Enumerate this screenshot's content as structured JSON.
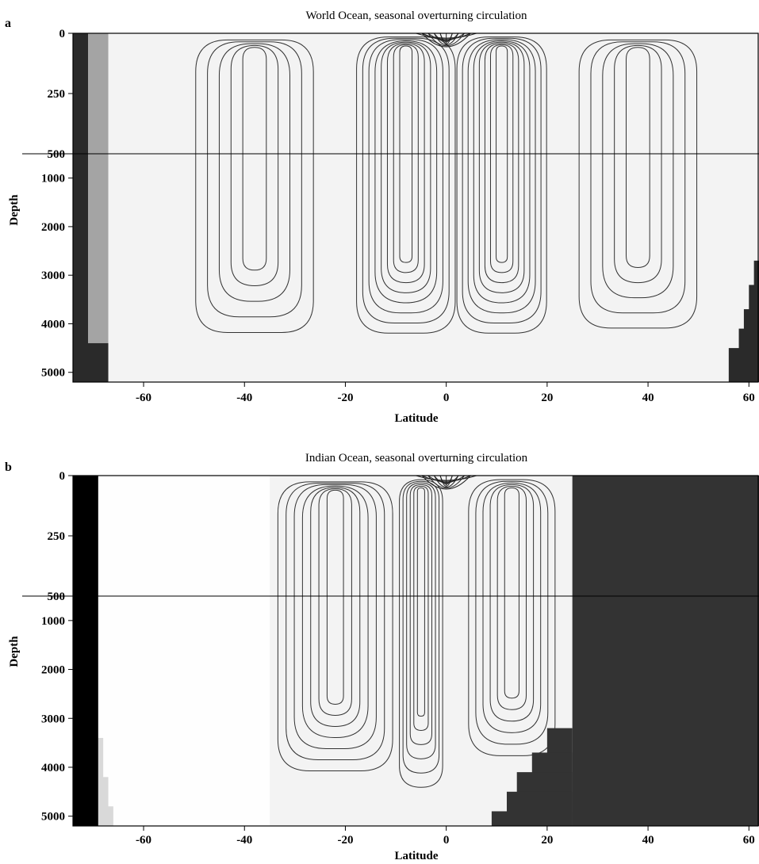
{
  "chart_data": [
    {
      "type": "contour",
      "panel_label": "a",
      "title": "World Ocean, seasonal overturning circulation",
      "xlabel": "Latitude",
      "ylabel": "Depth",
      "xlim": [
        -74,
        62
      ],
      "x_ticks": [
        -60,
        -40,
        -20,
        0,
        20,
        40,
        60
      ],
      "y_ticks_upper": [
        0,
        250,
        500
      ],
      "y_ticks_lower": [
        1000,
        2000,
        3000,
        4000,
        5000
      ],
      "ylim_upper": [
        0,
        500
      ],
      "ylim_lower": [
        500,
        5200
      ],
      "grid": false,
      "legend": "none",
      "land_color": "#2a2a2a",
      "ice_color": "#8a8a8a"
    },
    {
      "type": "contour",
      "panel_label": "b",
      "title": "Indian Ocean, seasonal overturning circulation",
      "xlabel": "Latitude",
      "ylabel": "Depth",
      "xlim": [
        -74,
        62
      ],
      "x_ticks": [
        -60,
        -40,
        -20,
        0,
        20,
        40,
        60
      ],
      "y_ticks_upper": [
        0,
        250,
        500
      ],
      "y_ticks_lower": [
        1000,
        2000,
        3000,
        4000,
        5000
      ],
      "ylim_upper": [
        0,
        500
      ],
      "ylim_lower": [
        500,
        5200
      ],
      "grid": false,
      "legend": "none",
      "land_color": "#2a2a2a",
      "ice_color": "#8a8a8a"
    }
  ]
}
